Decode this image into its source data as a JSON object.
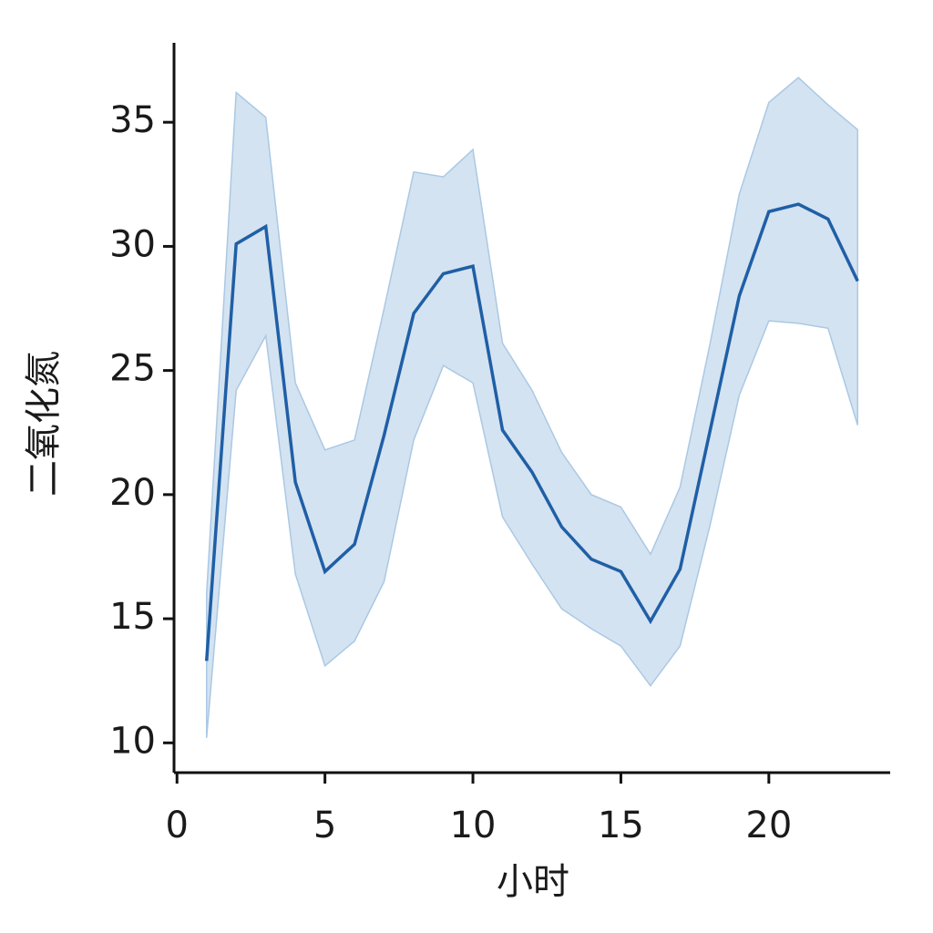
{
  "chart_data": {
    "type": "line",
    "x_label": "小时",
    "y_label": "二氧化氮",
    "x": [
      1,
      2,
      3,
      4,
      5,
      6,
      7,
      8,
      9,
      10,
      11,
      12,
      13,
      14,
      15,
      16,
      17,
      18,
      19,
      20,
      21,
      22,
      23
    ],
    "series": [
      {
        "color": "#1f5fa6",
        "band_color": "#aac8e4",
        "values": [
          13.3,
          30.1,
          30.8,
          20.5,
          16.9,
          18.0,
          22.4,
          27.3,
          28.9,
          29.2,
          22.6,
          20.9,
          18.7,
          17.4,
          16.9,
          14.9,
          17.0,
          22.5,
          28.0,
          31.4,
          31.7,
          31.1,
          28.6
        ],
        "upper": [
          16.0,
          36.2,
          35.2,
          24.5,
          21.8,
          22.2,
          27.5,
          33.0,
          32.8,
          33.9,
          26.1,
          24.2,
          21.7,
          20.0,
          19.5,
          17.6,
          20.3,
          26.0,
          32.1,
          35.8,
          36.8,
          35.7,
          34.7
        ],
        "lower": [
          10.2,
          24.2,
          26.4,
          16.8,
          13.1,
          14.1,
          16.5,
          22.2,
          25.2,
          24.5,
          19.1,
          17.2,
          15.4,
          14.6,
          13.9,
          12.3,
          13.9,
          18.7,
          24.0,
          27.0,
          26.9,
          26.7,
          22.8
        ]
      }
    ],
    "xlim": [
      -0.1,
      24.1
    ],
    "xticks": [
      0,
      5,
      10,
      15,
      20
    ],
    "ylim": [
      8.8,
      38.2
    ],
    "yticks": [
      10,
      15,
      20,
      25,
      30,
      35
    ]
  }
}
